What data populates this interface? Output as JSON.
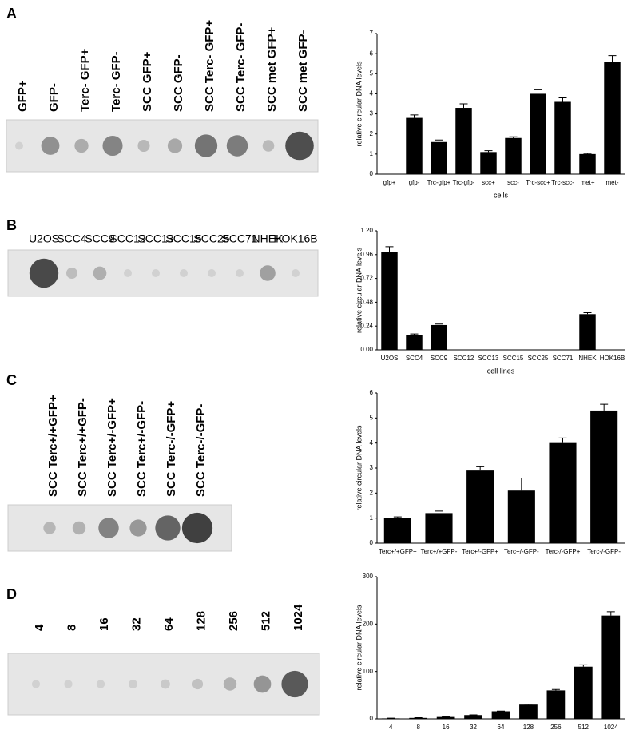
{
  "panels": [
    {
      "letter": "A",
      "lanes": [
        "GFP+",
        "GFP-",
        "Terc- GFP+",
        "Terc- GFP-",
        "SCC GFP+",
        "SCC GFP-",
        "SCC Terc- GFP+",
        "SCC Terc- GFP-",
        "SCC met GFP+",
        "SCC met GFP-"
      ]
    },
    {
      "letter": "B",
      "lanes": [
        "U2OS",
        "SCC4",
        "SCC9",
        "SCC12",
        "SCC13",
        "SCC15",
        "SCC25",
        "SCC71",
        "NHEK",
        "HOK16B"
      ]
    },
    {
      "letter": "C",
      "lanes": [
        "SCC Terc+/+GFP+",
        "SCC Terc+/+GFP-",
        "SCC Terc+/-GFP+",
        "SCC Terc+/-GFP-",
        "SCC Terc-/-GFP+",
        "SCC Terc-/-GFP-"
      ]
    },
    {
      "letter": "D",
      "lanes": [
        "4",
        "8",
        "16",
        "32",
        "64",
        "128",
        "256",
        "512",
        "1024"
      ]
    }
  ],
  "chart_data": [
    {
      "type": "bar",
      "y_label": "relative circular DNA levels",
      "x_label": "cells",
      "color": "#000000",
      "categories": [
        "gfp+",
        "gfp-",
        "Trc-gfp+",
        "Trc-gfp-",
        "scc+",
        "scc-",
        "Trc-scc+",
        "Trc-scc-",
        "met+",
        "met-"
      ],
      "values": [
        0,
        2.8,
        1.6,
        3.3,
        1.1,
        1.8,
        4.0,
        3.6,
        1.0,
        5.6
      ],
      "errors": [
        0,
        0.15,
        0.1,
        0.2,
        0.07,
        0.06,
        0.2,
        0.2,
        0.03,
        0.3
      ],
      "ylim": [
        0,
        7
      ],
      "yticks": [
        0,
        1,
        2,
        3,
        4,
        5,
        6,
        7
      ]
    },
    {
      "type": "bar",
      "y_label": "relative circular DNA levels",
      "x_label": "cell lines",
      "color": "#000000",
      "categories": [
        "U2OS",
        "SCC4",
        "SCC9",
        "SCC12",
        "SCC13",
        "SCC15",
        "SCC25",
        "SCC71",
        "NHEK",
        "HOK16B"
      ],
      "values": [
        0.99,
        0.15,
        0.25,
        0,
        0,
        0,
        0,
        0,
        0.36,
        0
      ],
      "errors": [
        0.05,
        0.01,
        0.01,
        0,
        0,
        0,
        0,
        0,
        0.015,
        0
      ],
      "ylim": [
        0,
        1.2
      ],
      "yticks": [
        {
          "value": 0,
          "label": "0.00"
        },
        0.24,
        0.48,
        0.72,
        0.96,
        {
          "value": 1.2,
          "label": "1.20"
        }
      ]
    },
    {
      "type": "bar",
      "y_label": "relative circular DNA levels",
      "color": "#000000",
      "categories": [
        "Terc+/+GFP+",
        "Terc+/+GFP-",
        "Terc+/-GFP+",
        "Terc+/-GFP-",
        "Terc-/-GFP+",
        "Terc-/-GFP-"
      ],
      "values": [
        1.0,
        1.2,
        2.9,
        2.1,
        4.0,
        5.3
      ],
      "errors": [
        0.05,
        0.08,
        0.15,
        0.5,
        0.2,
        0.25
      ],
      "ylim": [
        0,
        6
      ],
      "yticks": [
        0,
        1,
        2,
        3,
        4,
        5,
        6
      ]
    },
    {
      "type": "bar",
      "y_label": "relative circular DNA levels",
      "color": "#000000",
      "categories": [
        "4",
        "8",
        "16",
        "32",
        "64",
        "128",
        "256",
        "512",
        "1024"
      ],
      "values": [
        1,
        2,
        4,
        8,
        16,
        30,
        60,
        110,
        218
      ],
      "errors": [
        0.5,
        0.5,
        0.5,
        0.5,
        0.5,
        1,
        2,
        4,
        8
      ],
      "ylim": [
        0,
        300
      ],
      "yticks": [
        0,
        100,
        200,
        300
      ]
    }
  ]
}
